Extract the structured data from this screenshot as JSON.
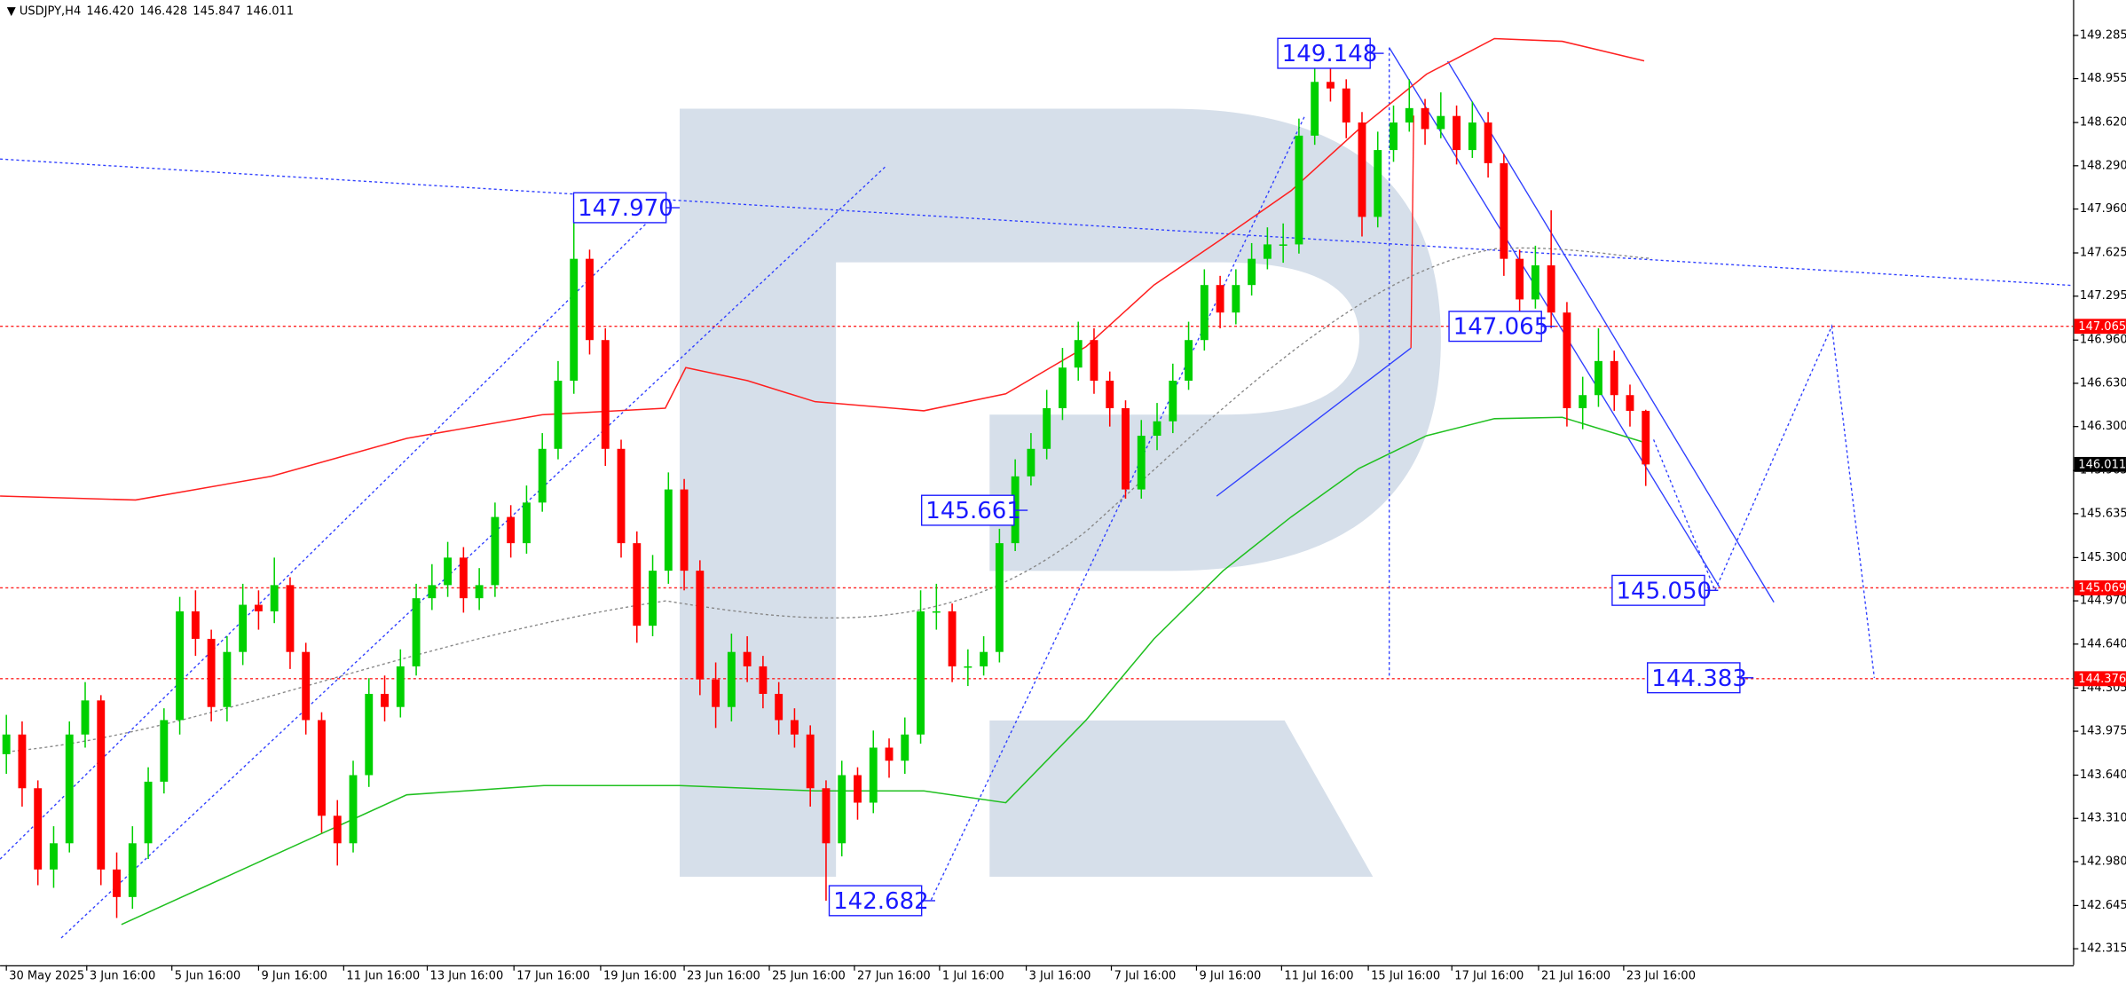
{
  "chart_data": {
    "type": "candlestick",
    "symbol": "USDJPY,H4",
    "quote": [
      "146.420",
      "146.428",
      "145.847",
      "146.011"
    ],
    "xlim": [
      -0.4,
      131.1
    ],
    "ylim": [
      142.19,
      149.555
    ],
    "up_color": "#00d000",
    "down_color": "#ff0000",
    "grid": false,
    "open": [
      143.8,
      143.95,
      143.54,
      142.92,
      143.12,
      143.95,
      144.21,
      142.92,
      142.71,
      143.12,
      143.59,
      144.06,
      144.89,
      144.68,
      144.16,
      144.58,
      144.94,
      144.89,
      145.09,
      144.58,
      144.06,
      143.33,
      143.12,
      143.64,
      144.26,
      144.16,
      144.47,
      144.99,
      145.09,
      145.3,
      144.99,
      145.09,
      145.61,
      145.41,
      145.72,
      146.13,
      146.65,
      147.58,
      146.96,
      146.13,
      145.41,
      144.78,
      145.2,
      145.82,
      145.2,
      144.37,
      144.16,
      144.58,
      144.47,
      144.26,
      144.06,
      143.95,
      143.54,
      143.12,
      143.64,
      143.43,
      143.85,
      143.75,
      143.95,
      144.89,
      144.89,
      144.47,
      144.47,
      144.58,
      145.41,
      145.92,
      146.13,
      146.44,
      146.75,
      146.96,
      146.65,
      146.44,
      145.82,
      146.23,
      146.34,
      146.65,
      146.96,
      147.38,
      147.17,
      147.38,
      147.58,
      147.69,
      147.69,
      148.52,
      148.93,
      148.88,
      148.62,
      147.9,
      148.41,
      148.62,
      148.73,
      148.57,
      148.67,
      148.41,
      148.62,
      148.31,
      147.58,
      147.27,
      147.53,
      147.17,
      146.44,
      146.54,
      146.8,
      146.54,
      146.42
    ],
    "high": [
      144.1,
      144.05,
      143.6,
      143.25,
      144.05,
      144.35,
      144.25,
      143.05,
      143.25,
      143.7,
      144.15,
      145.0,
      145.05,
      144.75,
      144.7,
      145.1,
      145.05,
      145.3,
      145.15,
      144.65,
      144.12,
      143.45,
      143.75,
      144.38,
      144.4,
      144.6,
      145.1,
      145.25,
      145.42,
      145.38,
      145.22,
      145.72,
      145.7,
      145.85,
      146.25,
      146.8,
      147.97,
      147.65,
      147.05,
      146.2,
      145.5,
      145.32,
      145.95,
      145.9,
      145.28,
      144.5,
      144.72,
      144.7,
      144.55,
      144.35,
      144.15,
      144.02,
      143.6,
      143.75,
      143.7,
      143.98,
      143.92,
      144.08,
      145.05,
      145.1,
      144.95,
      144.6,
      144.7,
      145.52,
      146.05,
      146.25,
      146.58,
      146.9,
      147.1,
      147.05,
      146.72,
      146.5,
      146.35,
      146.48,
      146.78,
      147.1,
      147.5,
      147.45,
      147.5,
      147.7,
      147.82,
      147.85,
      148.65,
      149.05,
      149.148,
      148.95,
      148.7,
      148.55,
      148.75,
      148.95,
      148.8,
      148.85,
      148.75,
      148.78,
      148.7,
      148.38,
      147.65,
      147.68,
      147.95,
      147.25,
      146.68,
      147.05,
      146.88,
      146.62,
      146.428
    ],
    "low": [
      143.65,
      143.4,
      142.8,
      142.78,
      143.05,
      143.85,
      142.8,
      142.55,
      142.62,
      143.0,
      143.5,
      143.95,
      144.55,
      144.05,
      144.05,
      144.48,
      144.75,
      144.8,
      144.45,
      143.95,
      143.2,
      142.95,
      143.05,
      143.55,
      144.05,
      144.08,
      144.4,
      144.9,
      145.0,
      144.88,
      144.9,
      145.0,
      145.3,
      145.33,
      145.65,
      146.05,
      146.55,
      146.85,
      146.0,
      145.3,
      144.65,
      144.7,
      145.1,
      145.05,
      144.25,
      144.0,
      144.05,
      144.35,
      144.15,
      143.95,
      143.85,
      143.4,
      142.682,
      143.02,
      143.3,
      143.35,
      143.62,
      143.65,
      143.88,
      144.75,
      144.35,
      144.32,
      144.4,
      144.5,
      145.35,
      145.85,
      146.05,
      146.35,
      146.65,
      146.55,
      146.3,
      145.75,
      145.75,
      146.12,
      146.25,
      146.58,
      146.88,
      147.05,
      147.08,
      147.3,
      147.5,
      147.55,
      147.62,
      148.45,
      148.78,
      148.5,
      147.75,
      147.82,
      148.32,
      148.55,
      148.45,
      148.5,
      148.3,
      148.35,
      148.2,
      147.45,
      147.15,
      147.2,
      147.05,
      146.3,
      146.28,
      146.45,
      146.42,
      146.3,
      145.847
    ],
    "close": [
      143.95,
      143.54,
      142.92,
      143.12,
      143.95,
      144.21,
      142.92,
      142.71,
      143.12,
      143.59,
      144.06,
      144.89,
      144.68,
      144.16,
      144.58,
      144.94,
      144.89,
      145.09,
      144.58,
      144.06,
      143.33,
      143.12,
      143.64,
      144.26,
      144.16,
      144.47,
      144.99,
      145.09,
      145.3,
      144.99,
      145.09,
      145.61,
      145.41,
      145.72,
      146.13,
      146.65,
      147.58,
      146.96,
      146.13,
      145.41,
      144.78,
      145.2,
      145.82,
      145.2,
      144.37,
      144.16,
      144.58,
      144.47,
      144.26,
      144.06,
      143.95,
      143.54,
      143.12,
      143.64,
      143.43,
      143.85,
      143.75,
      143.95,
      144.89,
      144.89,
      144.47,
      144.47,
      144.58,
      145.41,
      145.92,
      146.13,
      146.44,
      146.75,
      146.96,
      146.65,
      146.44,
      145.82,
      146.23,
      146.34,
      146.65,
      146.96,
      147.38,
      147.17,
      147.38,
      147.58,
      147.69,
      147.69,
      148.52,
      148.93,
      148.88,
      148.62,
      147.9,
      148.41,
      148.62,
      148.73,
      148.57,
      148.67,
      148.41,
      148.62,
      148.31,
      147.58,
      147.27,
      147.53,
      147.17,
      146.44,
      146.54,
      146.8,
      146.54,
      146.42,
      146.011
    ],
    "overlays": [
      {
        "color": "#ff2020",
        "style": "solid",
        "x": [
          -0.4,
          8.2,
          16.8,
          25.4,
          34,
          41.8,
          43.1,
          47,
          51.3,
          58.2,
          63.4,
          68.5,
          72.8,
          77.2,
          81.5,
          85.8,
          90.1,
          94.4,
          98.7,
          103.9
        ],
        "values": [
          145.77,
          145.74,
          145.92,
          146.21,
          146.39,
          146.44,
          146.75,
          146.65,
          146.49,
          146.42,
          146.55,
          146.91,
          147.38,
          147.74,
          148.1,
          148.57,
          148.99,
          149.26,
          149.24,
          149.09
        ]
      },
      {
        "color": "#20c020",
        "style": "solid",
        "x": [
          7.3,
          16.8,
          25.4,
          34.1,
          42.7,
          51.3,
          58.2,
          63.4,
          68.5,
          72.8,
          77.2,
          81.5,
          85.8,
          90.1,
          94.4,
          98.7,
          103.9
        ],
        "values": [
          142.5,
          143.02,
          143.49,
          143.56,
          143.56,
          143.52,
          143.52,
          143.43,
          144.06,
          144.68,
          145.2,
          145.61,
          145.98,
          146.23,
          146.36,
          146.37,
          146.18
        ]
      },
      {
        "color": "#3040ff",
        "style": "dotted",
        "x": [
          104.5,
          108.4,
          115.8,
          118.5
        ],
        "values": [
          146.2,
          145.05,
          147.065,
          144.383
        ]
      }
    ],
    "levels": [
      {
        "value": 147.065,
        "label": "147.065"
      },
      {
        "value": 145.069,
        "label": "145.069"
      },
      {
        "value": 144.376,
        "label": "144.376"
      }
    ],
    "current": {
      "value": 146.011,
      "label": "146.011"
    },
    "annotations": [
      {
        "value": 149.148,
        "label": "149.148"
      },
      {
        "value": 147.97,
        "label": "147.970"
      },
      {
        "value": 145.661,
        "label": "145.661"
      },
      {
        "value": 142.682,
        "label": "142.682"
      },
      {
        "value": 147.065,
        "label": "147.065"
      },
      {
        "value": 145.05,
        "label": "145.050"
      },
      {
        "value": 144.383,
        "label": "144.383"
      }
    ],
    "yticks": [
      149.285,
      148.955,
      {
        "value": 148.62,
        "label": "148.620"
      },
      {
        "value": 148.29,
        "label": "148.290"
      },
      {
        "value": 147.96,
        "label": "147.960"
      },
      147.625,
      147.295,
      {
        "value": 146.96,
        "label": "146.960"
      },
      {
        "value": 146.63,
        "label": "146.630"
      },
      {
        "value": 146.3,
        "label": "146.300"
      },
      145.965,
      145.635,
      {
        "value": 145.3,
        "label": "145.300"
      },
      {
        "value": 144.97,
        "label": "144.970"
      },
      {
        "value": 144.64,
        "label": "144.640"
      },
      144.305,
      143.975,
      {
        "value": 143.64,
        "label": "143.640"
      },
      {
        "value": 143.31,
        "label": "143.310"
      },
      {
        "value": 142.98,
        "label": "142.980"
      },
      142.645,
      142.315
    ],
    "xticks": [
      {
        "value": 0,
        "label": "30 May 2025"
      },
      {
        "value": 5.1,
        "label": "3 Jun 16:00"
      },
      {
        "value": 10.5,
        "label": "5 Jun 16:00"
      },
      {
        "value": 16.0,
        "label": "9 Jun 16:00"
      },
      {
        "value": 21.4,
        "label": "11 Jun 16:00"
      },
      {
        "value": 26.7,
        "label": "13 Jun 16:00"
      },
      {
        "value": 32.2,
        "label": "17 Jun 16:00"
      },
      {
        "value": 37.7,
        "label": "19 Jun 16:00"
      },
      {
        "value": 43.0,
        "label": "23 Jun 16:00"
      },
      {
        "value": 48.4,
        "label": "25 Jun 16:00"
      },
      {
        "value": 53.8,
        "label": "27 Jun 16:00"
      },
      {
        "value": 59.2,
        "label": "1 Jul 16:00"
      },
      {
        "value": 64.7,
        "label": "3 Jul 16:00"
      },
      {
        "value": 70.1,
        "label": "7 Jul 16:00"
      },
      {
        "value": 75.5,
        "label": "9 Jul 16:00"
      },
      {
        "value": 80.9,
        "label": "11 Jul 16:00"
      },
      {
        "value": 86.4,
        "label": "15 Jul 16:00"
      },
      {
        "value": 91.7,
        "label": "17 Jul 16:00"
      },
      {
        "value": 97.2,
        "label": "21 Jul 16:00"
      },
      {
        "value": 102.6,
        "label": "23 Jul 16:00"
      }
    ]
  }
}
